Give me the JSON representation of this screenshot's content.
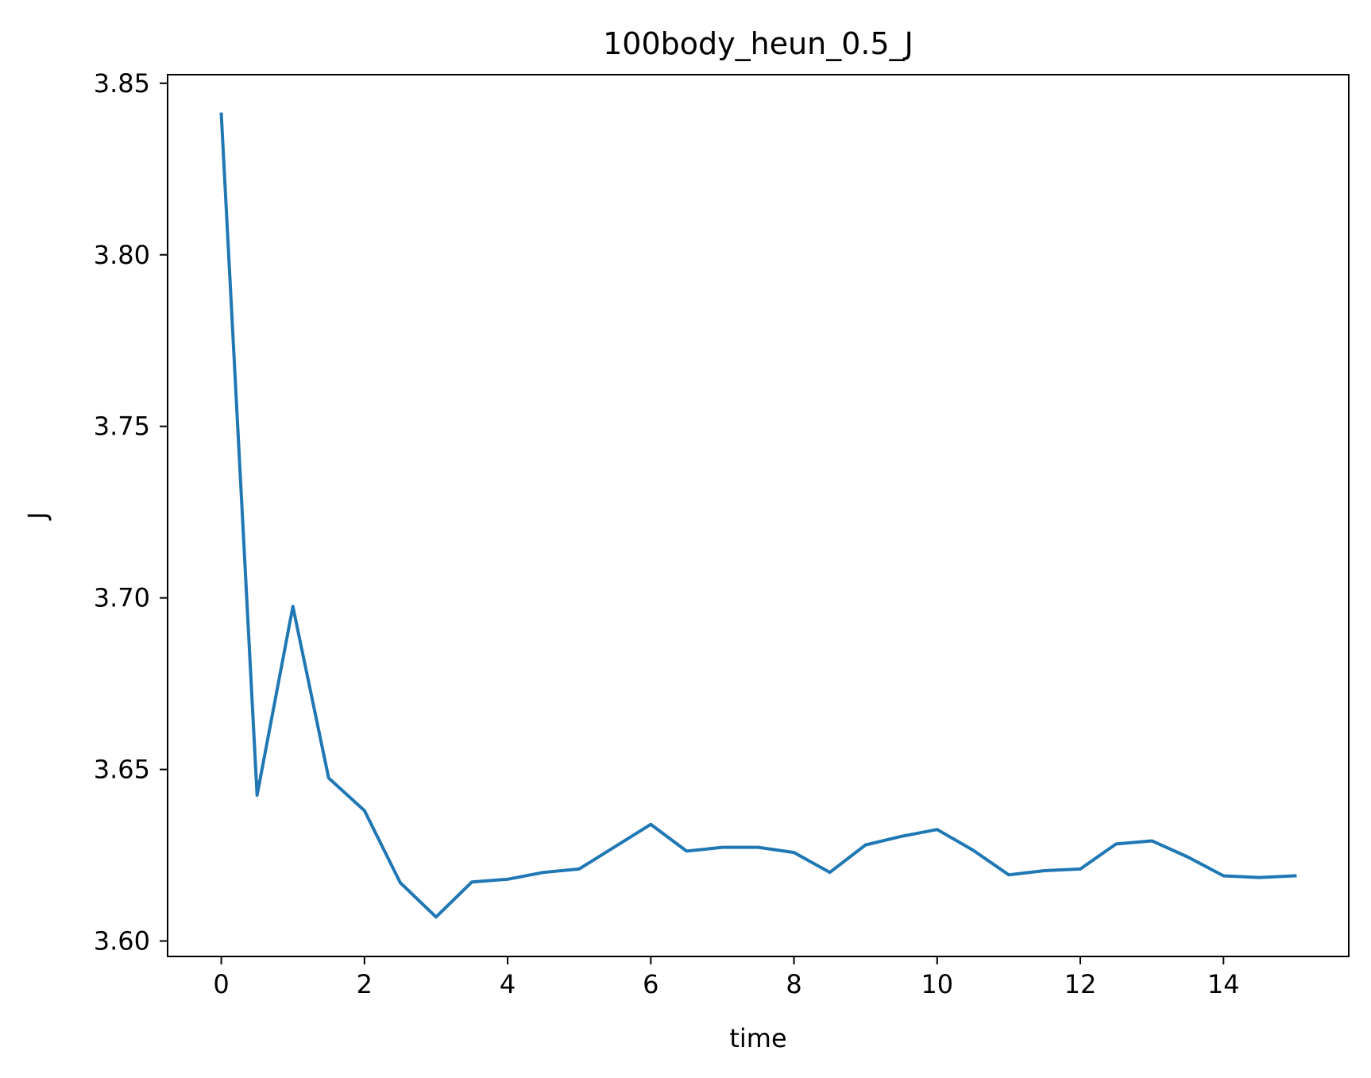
{
  "chart_data": {
    "type": "line",
    "title": "100body_heun_0.5_J",
    "xlabel": "time",
    "ylabel": "J",
    "xlim": [
      -0.75,
      15.75
    ],
    "ylim": [
      3.5955,
      3.8525
    ],
    "x_ticks": [
      0,
      2,
      4,
      6,
      8,
      10,
      12,
      14
    ],
    "x_tick_labels": [
      "0",
      "2",
      "4",
      "6",
      "8",
      "10",
      "12",
      "14"
    ],
    "y_ticks": [
      3.6,
      3.65,
      3.7,
      3.75,
      3.8,
      3.85
    ],
    "y_tick_labels": [
      "3.60",
      "3.65",
      "3.70",
      "3.75",
      "3.80",
      "3.85"
    ],
    "grid": false,
    "series": [
      {
        "color": "#1f77b4",
        "x": [
          0,
          0.5,
          1,
          1.5,
          2,
          2.5,
          3,
          3.5,
          4,
          4.5,
          5,
          5.5,
          6,
          6.5,
          7,
          7.5,
          8,
          8.5,
          9,
          9.5,
          10,
          10.5,
          11,
          11.5,
          12,
          12.5,
          13,
          13.5,
          14,
          14.5,
          15
        ],
        "y": [
          3.841,
          3.6425,
          3.6975,
          3.6475,
          3.638,
          3.617,
          3.607,
          3.6172,
          3.618,
          3.62,
          3.621,
          3.6275,
          3.634,
          3.6262,
          3.6273,
          3.6273,
          3.6258,
          3.62,
          3.628,
          3.6305,
          3.6325,
          3.6265,
          3.6193,
          3.6205,
          3.621,
          3.6283,
          3.6292,
          3.6245,
          3.619,
          3.6185,
          3.619
        ]
      }
    ]
  }
}
